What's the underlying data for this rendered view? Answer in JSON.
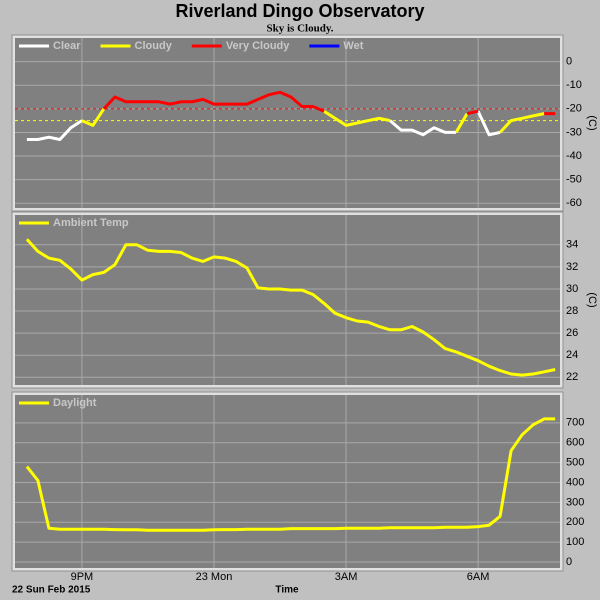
{
  "title": "Riverland Dingo Observatory",
  "subtitle": "Sky is Cloudy.",
  "chart_data": [
    {
      "type": "line",
      "y_label": "(C)",
      "x": [
        19.75,
        20,
        20.25,
        20.5,
        20.75,
        21,
        21.25,
        21.5,
        21.75,
        22,
        22.25,
        22.5,
        22.75,
        23,
        23.25,
        23.5,
        23.75,
        24,
        24.25,
        24.5,
        24.75,
        25,
        25.25,
        25.5,
        25.75,
        26,
        26.25,
        26.5,
        26.75,
        27,
        27.25,
        27.5,
        27.75,
        28,
        28.25,
        28.5,
        28.75,
        29,
        29.25,
        29.5,
        29.75,
        30,
        30.25,
        30.5,
        30.75,
        31,
        31.25,
        31.5,
        31.75
      ],
      "xlim": [
        19.48,
        31.86
      ],
      "xticks": [
        21,
        24,
        27,
        30
      ],
      "ylim": [
        -62,
        10
      ],
      "yticks": [
        0,
        -10,
        -20,
        -30,
        -40,
        -50,
        -60
      ],
      "thresholds": [
        {
          "value": -20,
          "color": "#ff0000"
        },
        {
          "value": -25,
          "color": "#ffff00"
        }
      ],
      "series": [
        {
          "name": "Clear",
          "color": "#ffffff",
          "values": [
            -33,
            -33,
            -32,
            -33,
            -28,
            -25,
            null,
            null,
            null,
            null,
            null,
            null,
            null,
            null,
            null,
            null,
            null,
            null,
            null,
            null,
            null,
            null,
            null,
            null,
            null,
            null,
            null,
            null,
            null,
            null,
            null,
            null,
            null,
            -25,
            -29,
            -29,
            -31,
            -28,
            -30,
            -30,
            null,
            -21,
            -31,
            -30,
            null,
            null,
            null,
            null,
            null
          ]
        },
        {
          "name": "Cloudy",
          "color": "#ffff00",
          "values": [
            null,
            null,
            null,
            null,
            null,
            -25,
            -27,
            -20,
            null,
            null,
            null,
            null,
            null,
            null,
            null,
            null,
            null,
            null,
            null,
            null,
            null,
            null,
            null,
            null,
            null,
            null,
            null,
            -21,
            -24,
            -27,
            -26,
            -25,
            -24,
            -25,
            null,
            null,
            null,
            null,
            null,
            -30,
            -22,
            null,
            null,
            -30,
            -25,
            -24,
            -23,
            -22,
            null
          ]
        },
        {
          "name": "Very Cloudy",
          "color": "#ff0000",
          "values": [
            null,
            null,
            null,
            null,
            null,
            null,
            null,
            -20,
            -15,
            -17,
            -17,
            -17,
            -17,
            -18,
            -17,
            -17,
            -16,
            -18,
            -18,
            -18,
            -18,
            -16,
            -14,
            -13,
            -15,
            -19,
            -19,
            -21,
            null,
            null,
            null,
            null,
            null,
            null,
            null,
            null,
            null,
            null,
            null,
            null,
            -22,
            -21,
            null,
            null,
            null,
            null,
            null,
            -22,
            -22
          ]
        },
        {
          "name": "Wet",
          "color": "#0000ff",
          "values": [
            null,
            null,
            null,
            null,
            null,
            null,
            null,
            null,
            null,
            null,
            null,
            null,
            null,
            null,
            null,
            null,
            null,
            null,
            null,
            null,
            null,
            null,
            null,
            null,
            null,
            null,
            null,
            null,
            null,
            null,
            null,
            null,
            null,
            null,
            null,
            null,
            null,
            null,
            null,
            null,
            null,
            null,
            null,
            null,
            null,
            null,
            null,
            null,
            null
          ]
        }
      ]
    },
    {
      "type": "line",
      "y_label": "(C)",
      "x": [
        19.75,
        20,
        20.25,
        20.5,
        20.75,
        21,
        21.25,
        21.5,
        21.75,
        22,
        22.25,
        22.5,
        22.75,
        23,
        23.25,
        23.5,
        23.75,
        24,
        24.25,
        24.5,
        24.75,
        25,
        25.25,
        25.5,
        25.75,
        26,
        26.25,
        26.5,
        26.75,
        27,
        27.25,
        27.5,
        27.75,
        28,
        28.25,
        28.5,
        28.75,
        29,
        29.25,
        29.5,
        29.75,
        30,
        30.25,
        30.5,
        30.75,
        31,
        31.25,
        31.5,
        31.75
      ],
      "xlim": [
        19.48,
        31.86
      ],
      "xticks": [
        21,
        24,
        27,
        30
      ],
      "ylim": [
        21.3,
        36.7
      ],
      "yticks": [
        22,
        24,
        26,
        28,
        30,
        32,
        34
      ],
      "series": [
        {
          "name": "Ambient Temp",
          "color": "#ffff00",
          "values": [
            34.5,
            33.4,
            32.8,
            32.6,
            31.8,
            30.8,
            31.3,
            31.5,
            32.2,
            34,
            34,
            33.5,
            33.4,
            33.4,
            33.3,
            32.8,
            32.5,
            32.9,
            32.8,
            32.5,
            31.9,
            30.1,
            30,
            30,
            29.9,
            29.9,
            29.5,
            28.7,
            27.8,
            27.4,
            27.1,
            27,
            26.6,
            26.3,
            26.3,
            26.6,
            26.1,
            25.4,
            24.6,
            24.3,
            23.9,
            23.5,
            23,
            22.6,
            22.3,
            22.2,
            22.3,
            22.5,
            22.7
          ]
        }
      ]
    },
    {
      "type": "line",
      "x": [
        19.75,
        20,
        20.25,
        20.5,
        20.75,
        21,
        21.25,
        21.5,
        21.75,
        22,
        22.25,
        22.5,
        22.75,
        23,
        23.25,
        23.5,
        23.75,
        24,
        24.25,
        24.5,
        24.75,
        25,
        25.25,
        25.5,
        25.75,
        26,
        26.25,
        26.5,
        26.75,
        27,
        27.25,
        27.5,
        27.75,
        28,
        28.25,
        28.5,
        28.75,
        29,
        29.25,
        29.5,
        29.75,
        30,
        30.25,
        30.5,
        30.75,
        31,
        31.25,
        31.5,
        31.75
      ],
      "xlim": [
        19.48,
        31.86
      ],
      "xticks": [
        {
          "value": 21,
          "label": "9PM"
        },
        {
          "value": 24,
          "label": "23 Mon"
        },
        {
          "value": 27,
          "label": "3AM"
        },
        {
          "value": 30,
          "label": "6AM"
        }
      ],
      "x_label": "Time",
      "date_label": "22 Sun Feb 2015",
      "ylim": [
        -30,
        840
      ],
      "yticks": [
        0,
        100,
        200,
        300,
        400,
        500,
        600,
        700
      ],
      "series": [
        {
          "name": "Daylight",
          "color": "#ffff00",
          "values": [
            480,
            410,
            170,
            165,
            165,
            165,
            165,
            165,
            163,
            162,
            162,
            160,
            160,
            160,
            160,
            160,
            160,
            162,
            163,
            163,
            165,
            165,
            165,
            165,
            168,
            168,
            168,
            168,
            168,
            170,
            170,
            170,
            170,
            172,
            172,
            172,
            172,
            172,
            175,
            175,
            175,
            178,
            185,
            230,
            560,
            640,
            690,
            720,
            720
          ]
        }
      ]
    }
  ]
}
